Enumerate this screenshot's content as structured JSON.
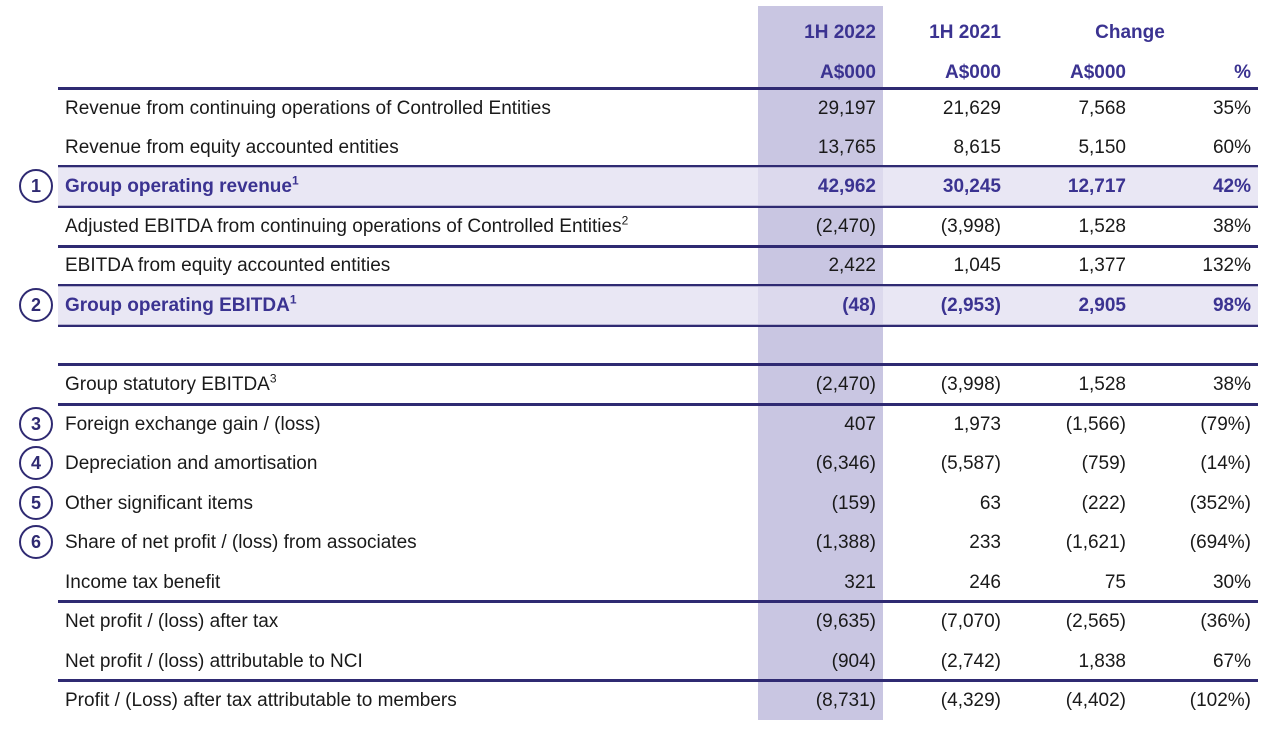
{
  "header": {
    "col1": "1H 2022",
    "col2": "1H 2021",
    "change": "Change",
    "unit1": "A$000",
    "unit2": "A$000",
    "unit3": "A$000",
    "unit4": "%"
  },
  "rows": [
    {
      "label": "Revenue from continuing operations of Controlled Entities",
      "sup": "",
      "v": [
        "29,197",
        "21,629",
        "7,568",
        "35%"
      ]
    },
    {
      "label": "Revenue from equity accounted entities",
      "sup": "",
      "v": [
        "13,765",
        "8,615",
        "5,150",
        "60%"
      ]
    },
    {
      "label": "Group operating revenue",
      "sup": "1",
      "marker": "1",
      "highlight": true,
      "v": [
        "42,962",
        "30,245",
        "12,717",
        "42%"
      ]
    },
    {
      "label": "Adjusted EBITDA from continuing operations of Controlled Entities",
      "sup": "2",
      "v": [
        "(2,470)",
        "(3,998)",
        "1,528",
        "38%"
      ]
    },
    {
      "label": "EBITDA from equity accounted entities",
      "sup": "",
      "v": [
        "2,422",
        "1,045",
        "1,377",
        "132%"
      ]
    },
    {
      "label": "Group operating EBITDA",
      "sup": "1",
      "marker": "2",
      "highlight": true,
      "v": [
        "(48)",
        "(2,953)",
        "2,905",
        "98%"
      ]
    },
    {
      "label": "Group statutory EBITDA",
      "sup": "3",
      "v": [
        "(2,470)",
        "(3,998)",
        "1,528",
        "38%"
      ]
    },
    {
      "label": "Foreign exchange gain / (loss)",
      "sup": "",
      "marker": "3",
      "v": [
        "407",
        "1,973",
        "(1,566)",
        "(79%)"
      ]
    },
    {
      "label": "Depreciation and amortisation",
      "sup": "",
      "marker": "4",
      "v": [
        "(6,346)",
        "(5,587)",
        "(759)",
        "(14%)"
      ]
    },
    {
      "label": "Other significant items",
      "sup": "",
      "marker": "5",
      "v": [
        "(159)",
        "63",
        "(222)",
        "(352%)"
      ]
    },
    {
      "label": "Share of net profit / (loss) from associates",
      "sup": "",
      "marker": "6",
      "v": [
        "(1,388)",
        "233",
        "(1,621)",
        "(694%)"
      ]
    },
    {
      "label": "Income tax benefit",
      "sup": "",
      "v": [
        "321",
        "246",
        "75",
        "30%"
      ]
    },
    {
      "label": "Net profit / (loss) after tax",
      "sup": "",
      "v": [
        "(9,635)",
        "(7,070)",
        "(2,565)",
        "(36%)"
      ]
    },
    {
      "label": "Net profit / (loss) attributable to NCI",
      "sup": "",
      "v": [
        "(904)",
        "(2,742)",
        "1,838",
        "67%"
      ]
    },
    {
      "label": "Profit / (Loss) after tax attributable to members",
      "sup": "",
      "v": [
        "(8,731)",
        "(4,329)",
        "(4,402)",
        "(102%)"
      ]
    }
  ],
  "colors": {
    "accent": "#3b3391",
    "column_highlight": "#c9c6e2",
    "rule": "#2f2a72"
  }
}
